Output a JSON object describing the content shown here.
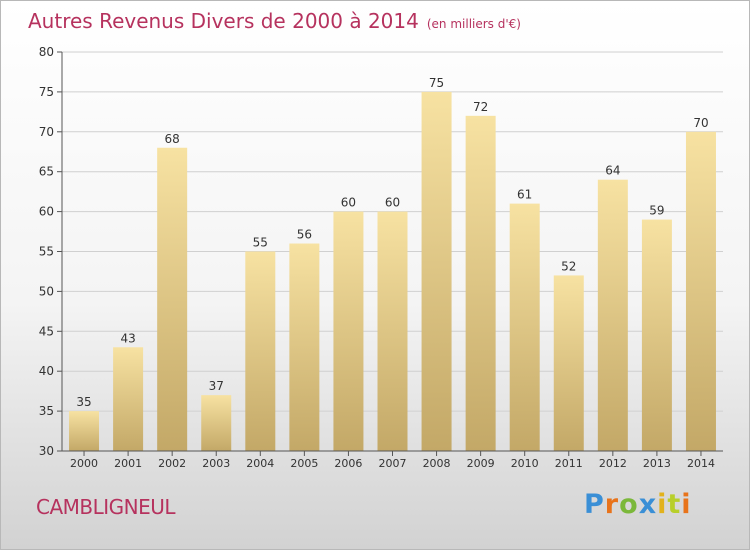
{
  "title": "Autres Revenus Divers de 2000 à 2014",
  "subtitle": "(en milliers d'€)",
  "commune": "CAMBLIGNEUL",
  "logo": {
    "letters": [
      "P",
      "r",
      "o",
      "x",
      "i",
      "t",
      "i"
    ],
    "colors": [
      "#3a8fd6",
      "#e8731a",
      "#7bb83a",
      "#3a8fd6",
      "#e2b21c",
      "#b8cf2a",
      "#e8731a"
    ]
  },
  "colors": {
    "bar_top": "#f7e2a2",
    "bar_bottom": "#c3a867",
    "grid": "#d0d0d0",
    "axis": "#555555",
    "title": "#b6325e"
  },
  "chart_data": {
    "type": "bar",
    "categories": [
      "2000",
      "2001",
      "2002",
      "2003",
      "2004",
      "2005",
      "2006",
      "2007",
      "2008",
      "2009",
      "2010",
      "2011",
      "2012",
      "2013",
      "2014"
    ],
    "values": [
      35,
      43,
      68,
      37,
      55,
      56,
      60,
      60,
      75,
      72,
      61,
      52,
      64,
      59,
      70
    ],
    "yticks": [
      30,
      35,
      40,
      45,
      50,
      55,
      60,
      65,
      70,
      75,
      80
    ],
    "ylim": [
      30,
      80
    ],
    "grid": true,
    "legend": "none"
  }
}
